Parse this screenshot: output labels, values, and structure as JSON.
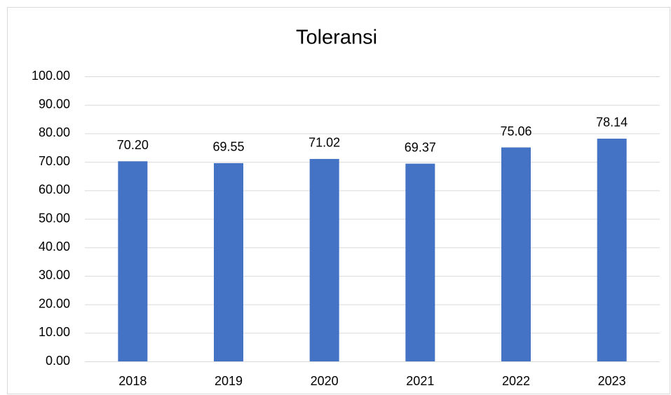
{
  "chart_data": {
    "type": "bar",
    "title": "Toleransi",
    "categories": [
      "2018",
      "2019",
      "2020",
      "2021",
      "2022",
      "2023"
    ],
    "values": [
      70.2,
      69.55,
      71.02,
      69.37,
      75.06,
      78.14
    ],
    "value_labels": [
      "70.20",
      "69.55",
      "71.02",
      "69.37",
      "75.06",
      "78.14"
    ],
    "color": "#4472c4",
    "ylim": [
      0,
      100
    ],
    "yticks": [
      {
        "value": 0,
        "label": "0.00"
      },
      {
        "value": 10,
        "label": "10.00"
      },
      {
        "value": 20,
        "label": "20.00"
      },
      {
        "value": 30,
        "label": "30.00"
      },
      {
        "value": 40,
        "label": "40.00"
      },
      {
        "value": 50,
        "label": "50.00"
      },
      {
        "value": 60,
        "label": "60.00"
      },
      {
        "value": 70,
        "label": "70.00"
      },
      {
        "value": 80,
        "label": "80.00"
      },
      {
        "value": 90,
        "label": "90.00"
      },
      {
        "value": 100,
        "label": "100.00"
      }
    ],
    "grid": true
  }
}
